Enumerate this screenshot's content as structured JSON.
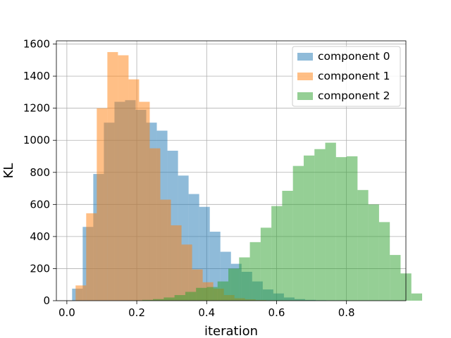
{
  "chart_data": {
    "type": "histogram",
    "title": "",
    "xlabel": "iteration",
    "ylabel": "KL",
    "xlim": [
      -0.03,
      0.97
    ],
    "ylim": [
      0,
      1620
    ],
    "xticks": [
      0.0,
      0.2,
      0.4,
      0.6,
      0.8
    ],
    "xtick_labels": [
      "0.0",
      "0.2",
      "0.4",
      "0.6",
      "0.8"
    ],
    "yticks": [
      0,
      200,
      400,
      600,
      800,
      1000,
      1200,
      1400,
      1600
    ],
    "ytick_labels": [
      "0",
      "200",
      "400",
      "600",
      "800",
      "1000",
      "1200",
      "1400",
      "1600"
    ],
    "grid": true,
    "legend_position": "top-right",
    "alpha": 0.5,
    "series": [
      {
        "name": "component 0",
        "color": "#1f77b4",
        "bin_width": 0.0303,
        "bin_start": 0.015,
        "counts": [
          75,
          460,
          790,
          1110,
          1240,
          1250,
          1190,
          1110,
          1060,
          935,
          780,
          665,
          585,
          430,
          305,
          230,
          180,
          120,
          70,
          45,
          20,
          10,
          5,
          3,
          2,
          1,
          0,
          0,
          0,
          0
        ]
      },
      {
        "name": "component 1",
        "color": "#ff7f0e",
        "bin_width": 0.0303,
        "bin_start": 0.025,
        "counts": [
          95,
          545,
          1200,
          1550,
          1530,
          1380,
          1240,
          950,
          630,
          470,
          350,
          195,
          115,
          75,
          35,
          15,
          8,
          4,
          2,
          1,
          0,
          0,
          0,
          0,
          0,
          0,
          0,
          0,
          0,
          0
        ]
      },
      {
        "name": "component 2",
        "color": "#2ca02c",
        "bin_width": 0.0308,
        "bin_start": 0.0,
        "counts": [
          0,
          0,
          0,
          0,
          0,
          1,
          2,
          5,
          10,
          20,
          35,
          55,
          80,
          85,
          120,
          200,
          270,
          365,
          455,
          590,
          685,
          840,
          905,
          945,
          985,
          895,
          900,
          690,
          600,
          490,
          285,
          170,
          45,
          0,
          0,
          0,
          0,
          0,
          0,
          0
        ]
      }
    ]
  }
}
